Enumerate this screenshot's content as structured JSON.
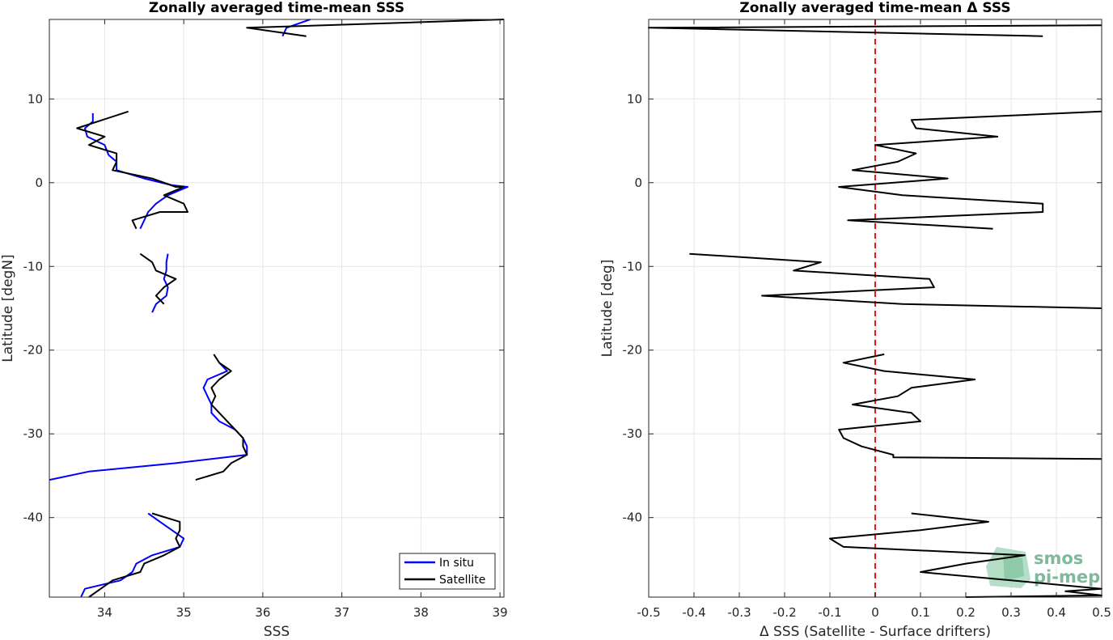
{
  "chart_data": [
    {
      "type": "line",
      "title": "Zonally averaged time-mean SSS",
      "xlabel": "SSS",
      "ylabel": "Latitude [degN]",
      "xlim": [
        33.3,
        39.05
      ],
      "ylim": [
        -49.5,
        19.5
      ],
      "xticks": [
        34,
        35,
        36,
        37,
        38,
        39
      ],
      "yticks": [
        -40,
        -30,
        -20,
        -10,
        0,
        10
      ],
      "grid": true,
      "legend": {
        "placement": "bottom-right",
        "entries": [
          "In situ",
          "Satellite"
        ]
      },
      "series": [
        {
          "name": "In situ",
          "color": "#0000ff",
          "segments": [
            [
              [
                36.25,
                17.5
              ],
              [
                36.3,
                18.5
              ],
              [
                36.6,
                19.5
              ]
            ],
            [
              [
                33.85,
                8.3
              ],
              [
                33.85,
                7.3
              ],
              [
                33.75,
                6.5
              ],
              [
                33.78,
                5.5
              ],
              [
                34.0,
                4.5
              ],
              [
                34.05,
                3.3
              ],
              [
                34.15,
                2.5
              ],
              [
                34.15,
                1.5
              ],
              [
                34.5,
                0.5
              ],
              [
                34.85,
                -0.3
              ],
              [
                35.05,
                -0.5
              ],
              [
                34.8,
                -1.5
              ],
              [
                34.65,
                -2.5
              ],
              [
                34.55,
                -3.5
              ],
              [
                34.5,
                -4.5
              ],
              [
                34.45,
                -5.5
              ]
            ],
            [
              [
                34.8,
                -8.5
              ],
              [
                34.78,
                -9.5
              ],
              [
                34.78,
                -10.5
              ],
              [
                34.75,
                -11.5
              ],
              [
                34.8,
                -12.5
              ],
              [
                34.78,
                -13.5
              ],
              [
                34.65,
                -14.5
              ],
              [
                34.6,
                -15.5
              ]
            ],
            [
              [
                35.45,
                -21.5
              ],
              [
                35.55,
                -22.5
              ],
              [
                35.3,
                -23.5
              ],
              [
                35.25,
                -24.5
              ],
              [
                35.3,
                -25.5
              ],
              [
                35.35,
                -26.5
              ],
              [
                35.35,
                -27.5
              ],
              [
                35.45,
                -28.5
              ],
              [
                35.65,
                -29.5
              ],
              [
                35.75,
                -30.5
              ],
              [
                35.8,
                -31.5
              ],
              [
                35.8,
                -32.5
              ],
              [
                34.9,
                -33.5
              ],
              [
                33.8,
                -34.5
              ],
              [
                33.3,
                -35.5
              ]
            ],
            [
              [
                34.55,
                -39.5
              ],
              [
                34.7,
                -40.5
              ],
              [
                34.85,
                -41.5
              ],
              [
                35.0,
                -42.5
              ],
              [
                34.95,
                -43.5
              ],
              [
                34.6,
                -44.5
              ],
              [
                34.4,
                -45.5
              ],
              [
                34.35,
                -46.5
              ],
              [
                34.2,
                -47.5
              ],
              [
                33.75,
                -48.5
              ],
              [
                33.7,
                -49.5
              ]
            ]
          ]
        },
        {
          "name": "Satellite",
          "color": "#000000",
          "segments": [
            [
              [
                36.55,
                17.5
              ],
              [
                35.8,
                18.5
              ],
              [
                39.05,
                19.5
              ]
            ],
            [
              [
                34.3,
                8.5
              ],
              [
                33.65,
                6.5
              ],
              [
                34.0,
                5.5
              ],
              [
                33.8,
                4.5
              ],
              [
                34.15,
                3.5
              ],
              [
                34.15,
                2.5
              ],
              [
                34.1,
                1.5
              ],
              [
                34.6,
                0.5
              ],
              [
                34.9,
                -0.5
              ],
              [
                35.0,
                -0.5
              ],
              [
                34.75,
                -1.5
              ],
              [
                35.0,
                -2.5
              ],
              [
                35.05,
                -3.5
              ],
              [
                34.7,
                -3.5
              ],
              [
                34.35,
                -4.5
              ],
              [
                34.4,
                -5.5
              ]
            ],
            [
              [
                34.45,
                -8.5
              ],
              [
                34.6,
                -9.5
              ],
              [
                34.65,
                -10.5
              ],
              [
                34.9,
                -11.5
              ],
              [
                34.75,
                -12.5
              ],
              [
                34.65,
                -13.5
              ],
              [
                34.75,
                -14.5
              ]
            ],
            [
              [
                35.38,
                -20.5
              ],
              [
                35.45,
                -21.5
              ],
              [
                35.6,
                -22.5
              ],
              [
                35.45,
                -23.5
              ],
              [
                35.35,
                -24.5
              ],
              [
                35.4,
                -25.5
              ],
              [
                35.35,
                -26.5
              ],
              [
                35.45,
                -27.5
              ],
              [
                35.55,
                -28.5
              ],
              [
                35.65,
                -29.5
              ],
              [
                35.75,
                -30.5
              ],
              [
                35.75,
                -31.5
              ],
              [
                35.8,
                -32.5
              ],
              [
                35.6,
                -33.5
              ],
              [
                35.5,
                -34.5
              ],
              [
                35.15,
                -35.5
              ]
            ],
            [
              [
                34.6,
                -39.5
              ],
              [
                34.95,
                -40.5
              ],
              [
                34.95,
                -41.5
              ],
              [
                34.9,
                -42.5
              ],
              [
                34.95,
                -43.5
              ],
              [
                34.75,
                -44.5
              ],
              [
                34.5,
                -45.5
              ],
              [
                34.45,
                -46.5
              ],
              [
                34.1,
                -47.5
              ],
              [
                33.95,
                -48.5
              ],
              [
                33.8,
                -49.5
              ]
            ]
          ]
        }
      ]
    },
    {
      "type": "line",
      "title": "Zonally averaged time-mean Δ SSS",
      "xlabel": "Δ SSS (Satellite - Surface drifters)",
      "ylabel": "Latitude [deg]",
      "xlim": [
        -0.5,
        0.5
      ],
      "ylim": [
        -49.5,
        19.5
      ],
      "xticks": [
        -0.5,
        -0.4,
        -0.3,
        -0.2,
        -0.1,
        0,
        0.1,
        0.2,
        0.3,
        0.4,
        0.5
      ],
      "yticks": [
        -40,
        -30,
        -20,
        -10,
        0,
        10
      ],
      "grid": true,
      "zero_line": {
        "x": 0,
        "color": "#e41a1c",
        "style": "dashed"
      },
      "series": [
        {
          "color": "#000000",
          "segments": [
            [
              [
                0.37,
                17.5
              ],
              [
                -0.5,
                18.5
              ],
              [
                0.5,
                18.8
              ]
            ],
            [
              [
                0.5,
                8.5
              ],
              [
                0.08,
                7.5
              ],
              [
                0.09,
                6.5
              ],
              [
                0.27,
                5.5
              ],
              [
                0.0,
                4.5
              ],
              [
                0.09,
                3.5
              ],
              [
                0.05,
                2.5
              ],
              [
                -0.05,
                1.5
              ],
              [
                0.16,
                0.5
              ],
              [
                -0.08,
                -0.5
              ],
              [
                0.06,
                -1.5
              ],
              [
                0.37,
                -2.5
              ],
              [
                0.37,
                -3.5
              ],
              [
                -0.06,
                -4.5
              ],
              [
                0.26,
                -5.5
              ]
            ],
            [
              [
                -0.41,
                -8.5
              ],
              [
                -0.12,
                -9.5
              ],
              [
                -0.18,
                -10.5
              ],
              [
                0.12,
                -11.5
              ],
              [
                0.13,
                -12.5
              ],
              [
                -0.25,
                -13.5
              ],
              [
                0.06,
                -14.5
              ],
              [
                0.5,
                -15
              ]
            ],
            [
              [
                0.02,
                -20.5
              ],
              [
                -0.07,
                -21.5
              ],
              [
                0.02,
                -22.5
              ],
              [
                0.22,
                -23.5
              ],
              [
                0.08,
                -24.5
              ],
              [
                0.05,
                -25.5
              ],
              [
                -0.05,
                -26.5
              ],
              [
                0.08,
                -27.5
              ],
              [
                0.1,
                -28.5
              ],
              [
                -0.08,
                -29.5
              ],
              [
                -0.07,
                -30.5
              ],
              [
                -0.03,
                -31.5
              ],
              [
                0.04,
                -32.5
              ],
              [
                0.04,
                -32.8
              ],
              [
                0.5,
                -33
              ]
            ],
            [
              [
                0.08,
                -39.5
              ],
              [
                0.25,
                -40.5
              ],
              [
                0.1,
                -41.5
              ],
              [
                -0.1,
                -42.5
              ],
              [
                -0.07,
                -43.5
              ],
              [
                0.33,
                -44.5
              ],
              [
                0.2,
                -45.5
              ],
              [
                0.1,
                -46.5
              ],
              [
                0.3,
                -47.5
              ],
              [
                0.5,
                -48.5
              ],
              [
                0.42,
                -48.8
              ],
              [
                0.5,
                -49.3
              ],
              [
                0.2,
                -49.5
              ]
            ]
          ]
        }
      ]
    }
  ],
  "logo": {
    "line1": "smos",
    "line2": "pi-mep"
  },
  "colors": {
    "axis": "#262626",
    "grid": "#e6e6e6",
    "insitu": "#0000ff",
    "satellite": "#000000",
    "zero": "#e41a1c",
    "logo": "#7fb89a"
  }
}
